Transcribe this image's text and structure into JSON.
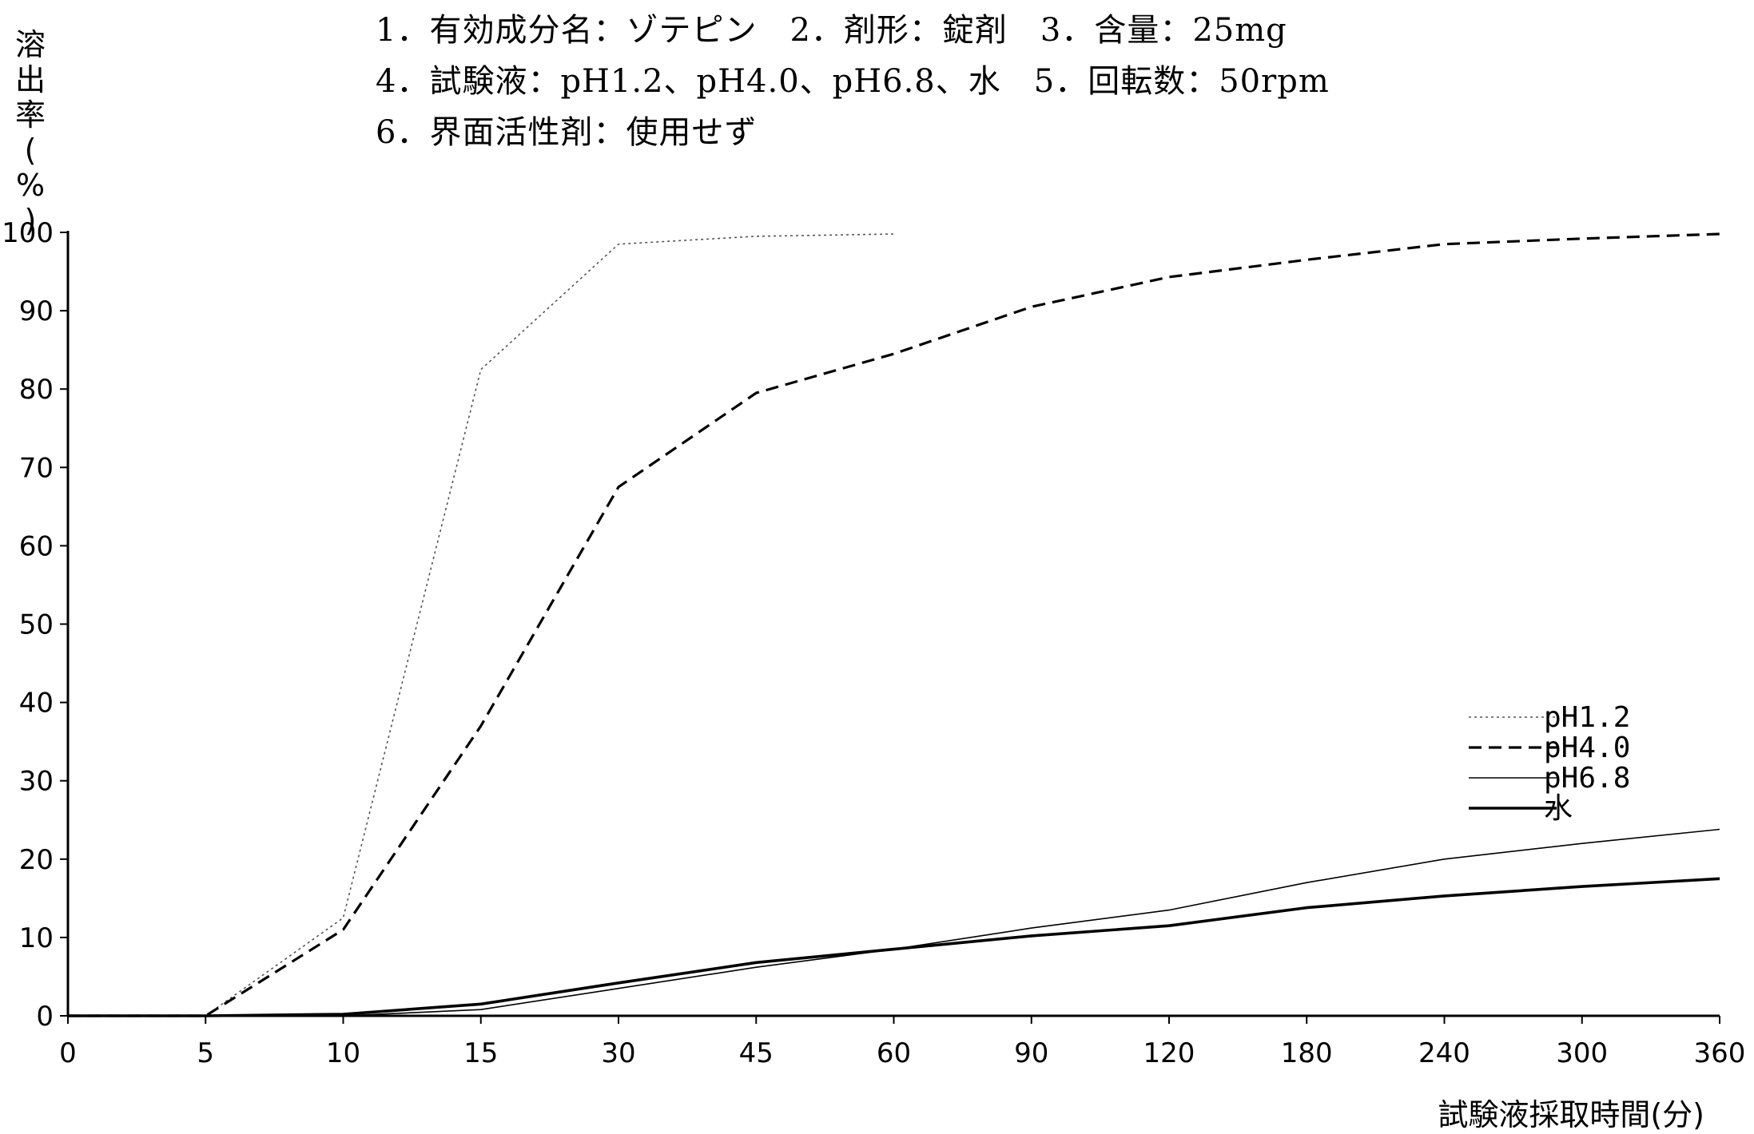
{
  "header": {
    "lines": [
      "1．有効成分名：ゾテピン　2．剤形：錠剤　3．含量：25mg",
      "4．試験液：pH1.2、pH4.0、pH6.8、水　5．回転数：50rpm",
      "6．界面活性剤：使用せず"
    ]
  },
  "chart_data": {
    "type": "line",
    "title": "",
    "xlabel": "試験液採取時間(分)",
    "ylabel": "溶出率(%)",
    "ylim": [
      0,
      100
    ],
    "yticks": [
      "0",
      "10",
      "20",
      "30",
      "40",
      "50",
      "60",
      "70",
      "80",
      "90",
      "100"
    ],
    "categories": [
      "0",
      "5",
      "10",
      "15",
      "30",
      "45",
      "60",
      "90",
      "120",
      "180",
      "240",
      "300",
      "360"
    ],
    "grid": false,
    "legend_position": "right",
    "series": [
      {
        "name": "pH1.2",
        "style": "dotted",
        "color": "#555555",
        "values": [
          0,
          0,
          12.5,
          82.5,
          98.5,
          99.5,
          99.8,
          null,
          null,
          null,
          null,
          null,
          null
        ]
      },
      {
        "name": "pH4.0",
        "style": "dashed",
        "color": "#000000",
        "values": [
          0,
          0,
          11,
          37,
          67.5,
          79.5,
          84.5,
          90.5,
          94.3,
          96.5,
          98.5,
          99.2,
          99.8
        ]
      },
      {
        "name": "pH6.8",
        "style": "thin",
        "color": "#000000",
        "values": [
          0,
          0,
          0,
          0.8,
          3.5,
          6.2,
          8.5,
          11.2,
          13.5,
          17,
          20,
          22,
          23.8
        ]
      },
      {
        "name": "水",
        "style": "thick",
        "color": "#000000",
        "values": [
          0,
          0,
          0.2,
          1.5,
          4.2,
          6.8,
          8.5,
          10.2,
          11.5,
          13.8,
          15.3,
          16.5,
          17.5
        ]
      }
    ]
  }
}
